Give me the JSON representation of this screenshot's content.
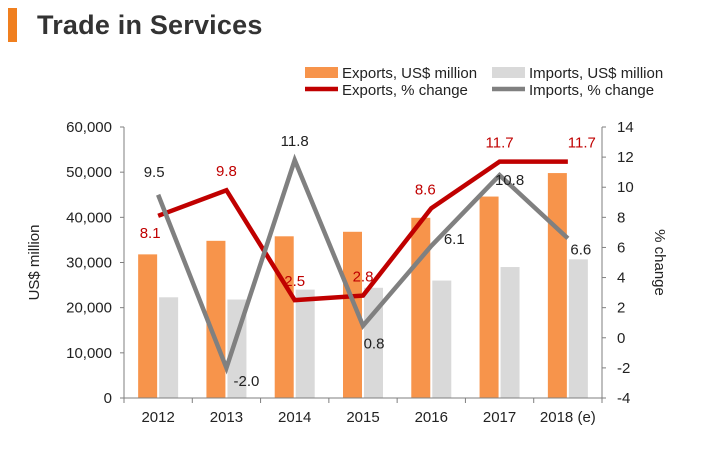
{
  "title": "Trade in Services",
  "colors": {
    "exports_bar": "#f7944b",
    "imports_bar": "#d9d9d9",
    "exports_line": "#c00000",
    "imports_line": "#808080",
    "title_accent": "#f07f1f",
    "exports_label": "#c00000",
    "imports_label": "#222222"
  },
  "chart_data": {
    "type": "bar",
    "title": "Trade in Services",
    "categories": [
      "2012",
      "2013",
      "2014",
      "2015",
      "2016",
      "2017",
      "2018 (e)"
    ],
    "series": [
      {
        "name": "Exports, US$ million",
        "kind": "bar",
        "axis": "left",
        "values": [
          31800,
          34800,
          35800,
          36800,
          39900,
          44600,
          49800
        ]
      },
      {
        "name": "Imports, US$ million",
        "kind": "bar",
        "axis": "left",
        "values": [
          22300,
          21800,
          24000,
          24400,
          26000,
          29000,
          30700
        ]
      },
      {
        "name": "Exports, % change",
        "kind": "line",
        "axis": "right",
        "values": [
          8.1,
          9.8,
          2.5,
          2.8,
          8.6,
          11.7,
          11.7
        ]
      },
      {
        "name": "Imports, % change",
        "kind": "line",
        "axis": "right",
        "values": [
          9.5,
          -2.0,
          11.8,
          0.8,
          6.1,
          10.8,
          6.6
        ]
      }
    ],
    "data_labels": {
      "exports_pct": [
        "8.1",
        "9.8",
        "2.5",
        "2.8",
        "8.6",
        "11.7",
        "11.7"
      ],
      "imports_pct": [
        "9.5",
        "-2.0",
        "11.8",
        "0.8",
        "6.1",
        "10.8",
        "6.6"
      ]
    },
    "ylabel": "US$ million",
    "y2label": "% change",
    "ylim": [
      0,
      60000
    ],
    "y2lim": [
      -4,
      14
    ],
    "yticks": [
      "0",
      "10,000",
      "20,000",
      "30,000",
      "40,000",
      "50,000",
      "60,000"
    ],
    "y2ticks": [
      "-4",
      "-2",
      "0",
      "2",
      "4",
      "6",
      "8",
      "10",
      "12",
      "14"
    ],
    "grid": false,
    "legend_position": "top-right"
  }
}
